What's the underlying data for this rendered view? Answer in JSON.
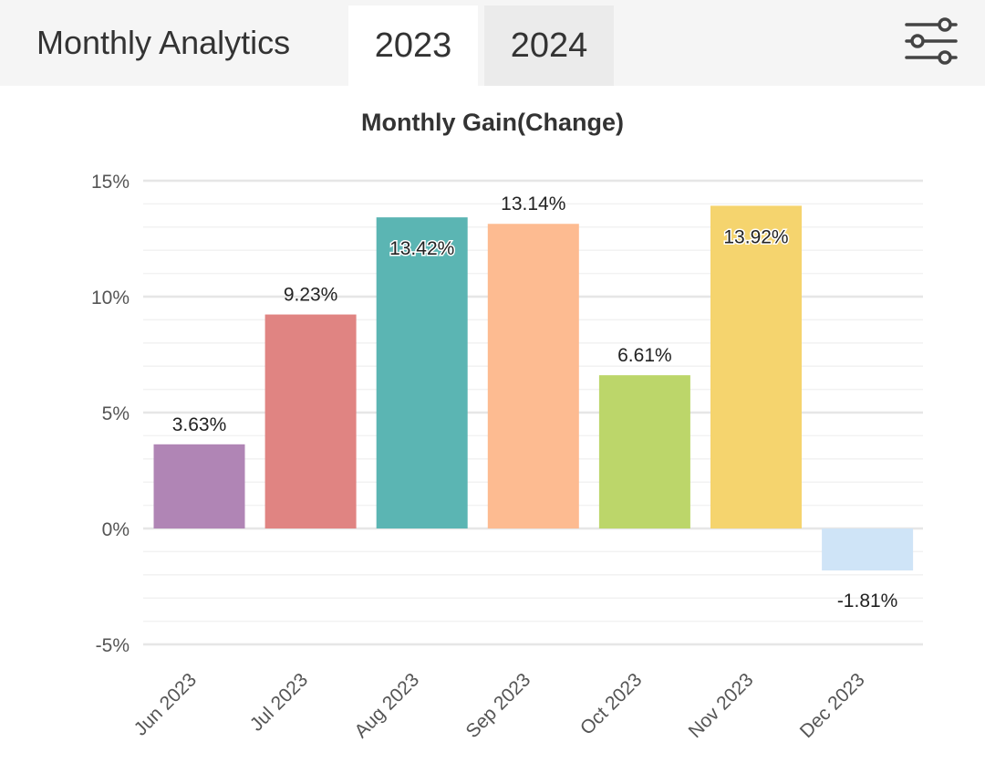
{
  "header": {
    "title": "Monthly Analytics",
    "tabs": [
      {
        "label": "2023",
        "active": true
      },
      {
        "label": "2024",
        "active": false
      }
    ],
    "filter_icon": "sliders-icon"
  },
  "colors": {
    "header_bg": "#f5f5f5",
    "tab_active_bg": "#ffffff",
    "tab_inactive_bg": "#ebebeb",
    "text": "#333333",
    "gridline": "#ececec"
  },
  "chart_data": {
    "type": "bar",
    "title": "Monthly Gain(Change)",
    "categories": [
      "Jun 2023",
      "Jul 2023",
      "Aug 2023",
      "Sep 2023",
      "Oct 2023",
      "Nov 2023",
      "Dec 2023"
    ],
    "values": [
      3.63,
      9.23,
      13.42,
      13.14,
      6.61,
      13.92,
      -1.81
    ],
    "data_labels": [
      "3.63%",
      "9.23%",
      "13.42%",
      "13.14%",
      "6.61%",
      "13.92%",
      "-1.81%"
    ],
    "bar_colors": [
      "#b085b5",
      "#e08482",
      "#5bb5b3",
      "#fdbb91",
      "#bcd66a",
      "#f5d46e",
      "#cfe4f7"
    ],
    "ylim": [
      -5,
      15
    ],
    "yticks": [
      -5,
      0,
      5,
      10,
      15
    ],
    "ytick_labels": [
      "-5%",
      "0%",
      "5%",
      "10%",
      "15%"
    ],
    "xlabel": "",
    "ylabel": "",
    "grid": true,
    "legend": false
  }
}
